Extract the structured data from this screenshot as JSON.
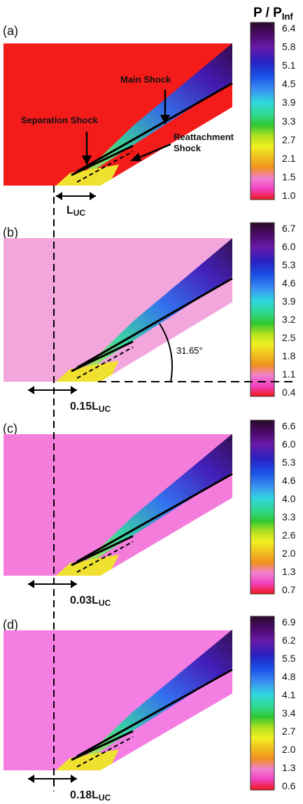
{
  "colorbar_title": {
    "main": "P / P",
    "sub": "Inf"
  },
  "panels": [
    {
      "label": "(a)",
      "ticks": [
        "6.4",
        "5.8",
        "5.1",
        "4.5",
        "3.9",
        "3.3",
        "2.7",
        "2.1",
        "1.5",
        "1.0"
      ],
      "annotations": {
        "main_shock": "Main Shock",
        "separation_shock": "Separation Shock",
        "reattachment_line1": "Reattachment",
        "reattachment_line2": "Shock"
      },
      "dimension": {
        "prefix": "",
        "main": "L",
        "sub": "UC"
      },
      "bg_color": "#f41b1b"
    },
    {
      "label": "(b)",
      "ticks": [
        "6.7",
        "6.0",
        "5.3",
        "4.6",
        "3.9",
        "3.2",
        "2.5",
        "1.8",
        "1.1",
        "0.4"
      ],
      "angle": "31.65°",
      "dimension": {
        "prefix": "0.15",
        "main": "L",
        "sub": "UC"
      },
      "bg_color": "#f2a6dc"
    },
    {
      "label": "(c)",
      "ticks": [
        "6.6",
        "6.0",
        "5.3",
        "4.6",
        "4.0",
        "3.3",
        "2.6",
        "2.0",
        "1.3",
        "0.7"
      ],
      "dimension": {
        "prefix": "0.03",
        "main": "L",
        "sub": "UC"
      },
      "bg_color": "#f47ddc"
    },
    {
      "label": "(d)",
      "ticks": [
        "6.9",
        "6.2",
        "5.5",
        "4.8",
        "4.1",
        "3.4",
        "2.7",
        "2.0",
        "1.3",
        "0.6"
      ],
      "dimension": {
        "prefix": "0.18",
        "main": "L",
        "sub": "UC"
      },
      "bg_color": "#f57ee2"
    }
  ],
  "colormap": [
    "#2a0a2a",
    "#4a0a6a",
    "#6a1aa8",
    "#3a1ab8",
    "#1a40e0",
    "#2a70f0",
    "#3aa0f0",
    "#30d8e0",
    "#30d890",
    "#30d030",
    "#b0e020",
    "#f0f020",
    "#f0c020",
    "#f09020",
    "#f05020",
    "#f060c0",
    "#f080f0",
    "#f41b1b"
  ]
}
